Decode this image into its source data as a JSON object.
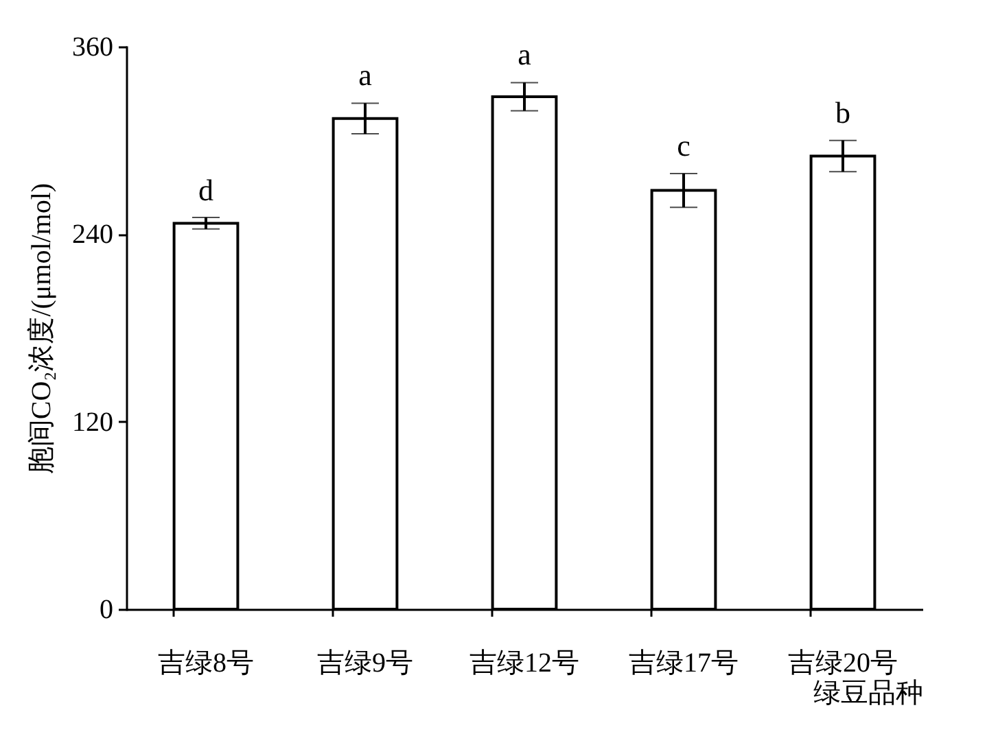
{
  "chart_data": {
    "type": "bar",
    "xlabel": "绿豆品种",
    "ylabel": "胞间CO₂浓度/(μmol/mol)",
    "categories": [
      "吉绿8号",
      "吉绿9号",
      "吉绿12号",
      "吉绿17号",
      "吉绿20号"
    ],
    "values": [
      247,
      314,
      328,
      268,
      290
    ],
    "errors": [
      3.7,
      9.8,
      9,
      10.8,
      10
    ],
    "color": "#ffffff",
    "ylim": [
      0,
      360
    ],
    "yticks": [
      0,
      120,
      240,
      360
    ],
    "grid": false,
    "annotations": [
      {
        "text": "d",
        "x": "吉绿8号",
        "y": 250.3
      },
      {
        "text": "a",
        "x": "吉绿9号",
        "y": 323.8
      },
      {
        "text": "a",
        "x": "吉绿12号",
        "y": 337
      },
      {
        "text": "c",
        "x": "吉绿17号",
        "y": 278.8
      },
      {
        "text": "b",
        "x": "吉绿20号",
        "y": 300
      }
    ]
  }
}
